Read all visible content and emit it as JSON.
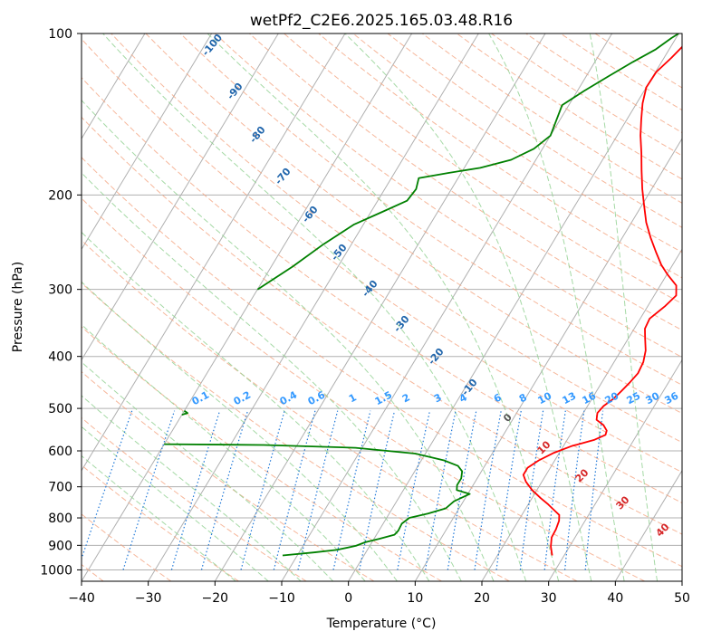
{
  "chart_data": {
    "type": "line",
    "title": "wetPf2_C2E6.2025.165.03.48.R16",
    "xlabel": "Temperature (°C)",
    "ylabel": "Pressure (hPa)",
    "xlim": [
      -40,
      50
    ],
    "ylim": [
      1050,
      100
    ],
    "y_scale": "log",
    "x_ticks": [
      -40,
      -30,
      -20,
      -10,
      0,
      10,
      20,
      30,
      40,
      50
    ],
    "y_ticks": [
      100,
      200,
      300,
      400,
      500,
      600,
      700,
      800,
      900,
      1000
    ],
    "grid": true,
    "series": [
      {
        "color": "#ff0000",
        "points": [
          [
            28.2,
            940
          ],
          [
            27.2,
            905
          ],
          [
            26.5,
            870
          ],
          [
            26.4,
            840
          ],
          [
            26.1,
            810
          ],
          [
            25.6,
            790
          ],
          [
            24.5,
            775
          ],
          [
            23.0,
            755
          ],
          [
            21.3,
            735
          ],
          [
            19.3,
            710
          ],
          [
            17.6,
            685
          ],
          [
            16.6,
            665
          ],
          [
            16.6,
            645
          ],
          [
            17.6,
            625
          ],
          [
            19.2,
            605
          ],
          [
            21.2,
            588
          ],
          [
            24.1,
            572
          ],
          [
            25.3,
            560
          ],
          [
            25.1,
            550
          ],
          [
            24.1,
            537
          ],
          [
            22.6,
            525
          ],
          [
            22.1,
            510
          ],
          [
            22.4,
            495
          ],
          [
            23.2,
            480
          ],
          [
            23.7,
            465
          ],
          [
            24.2,
            448
          ],
          [
            24.6,
            430
          ],
          [
            24.4,
            410
          ],
          [
            23.7,
            390
          ],
          [
            22.5,
            370
          ],
          [
            21.6,
            355
          ],
          [
            21.4,
            340
          ],
          [
            22.6,
            322
          ],
          [
            23.3,
            308
          ],
          [
            22.4,
            295
          ],
          [
            20.2,
            282
          ],
          [
            18.3,
            270
          ],
          [
            16.4,
            256
          ],
          [
            14.2,
            240
          ],
          [
            12.2,
            225
          ],
          [
            10.2,
            208
          ],
          [
            8.6,
            195
          ],
          [
            6.8,
            180
          ],
          [
            5.2,
            167
          ],
          [
            3.5,
            155
          ],
          [
            2.2,
            145
          ],
          [
            0.9,
            135
          ],
          [
            0.0,
            126
          ],
          [
            0.1,
            118
          ],
          [
            1.1,
            111
          ],
          [
            1.7,
            106
          ],
          [
            2.5,
            102
          ],
          [
            3.7,
            100
          ]
        ]
      },
      {
        "color": "#008000",
        "points": [
          [
            -12.2,
            940
          ],
          [
            -7.8,
            928
          ],
          [
            -4.6,
            918
          ],
          [
            -2.1,
            902
          ],
          [
            -1.0,
            888
          ],
          [
            0.8,
            875
          ],
          [
            2.7,
            860
          ],
          [
            2.9,
            845
          ],
          [
            2.8,
            820
          ],
          [
            3.4,
            800
          ],
          [
            5.8,
            785
          ],
          [
            8.0,
            768
          ],
          [
            8.6,
            745
          ],
          [
            10.3,
            722
          ],
          [
            8.0,
            710
          ],
          [
            7.6,
            695
          ],
          [
            7.6,
            675
          ],
          [
            7.1,
            655
          ],
          [
            6.0,
            640
          ],
          [
            3.4,
            625
          ],
          [
            -1.5,
            607
          ],
          [
            -11.0,
            592
          ],
          [
            -25.0,
            585
          ],
          [
            -40.0,
            583
          ]
        ]
      },
      {
        "color": "#008000",
        "points": [
          [
            -40.0,
            300
          ],
          [
            -36.8,
            272
          ],
          [
            -34.2,
            247
          ],
          [
            -31.4,
            227
          ],
          [
            -28.3,
            215
          ],
          [
            -25.6,
            205
          ],
          [
            -25.3,
            195
          ],
          [
            -25.9,
            186
          ],
          [
            -22.0,
            182
          ],
          [
            -17.6,
            178
          ],
          [
            -13.7,
            172
          ],
          [
            -11.3,
            164
          ],
          [
            -10.0,
            155
          ],
          [
            -10.5,
            145
          ],
          [
            -11.0,
            136
          ],
          [
            -9.0,
            128
          ],
          [
            -6.6,
            120
          ],
          [
            -4.3,
            113
          ],
          [
            -2.0,
            107
          ],
          [
            -0.7,
            102
          ],
          [
            0.0,
            100
          ]
        ]
      },
      {
        "color": "#008000",
        "points": [
          [
            -40.0,
            505
          ],
          [
            -39.3,
            510
          ],
          [
            -40.0,
            514
          ]
        ]
      }
    ],
    "dry_adiabat_labels": [
      "-100",
      "-90",
      "-80",
      "-70",
      "-60",
      "-50",
      "-40",
      "-30",
      "-20",
      "-10"
    ],
    "moist_adiabat_labels": [
      "0",
      "10",
      "20",
      "30",
      "40"
    ],
    "mixing_ratio_labels": [
      "0.1",
      "0.2",
      "0.4",
      "0.6",
      "1",
      "1.5",
      "2",
      "3",
      "4",
      "6",
      "8",
      "10",
      "13",
      "16",
      "20",
      "25",
      "30",
      "36"
    ]
  },
  "colors": {
    "dry_adiabat": "#f4a582",
    "moist_adiabat": "#8fcf8f",
    "isotherm": "#b0b0b0",
    "mixing_ratio": "#1f78d8",
    "dry_label": "#2166ac",
    "moist_label": "#d62728",
    "mixing_label": "#3399ff"
  }
}
